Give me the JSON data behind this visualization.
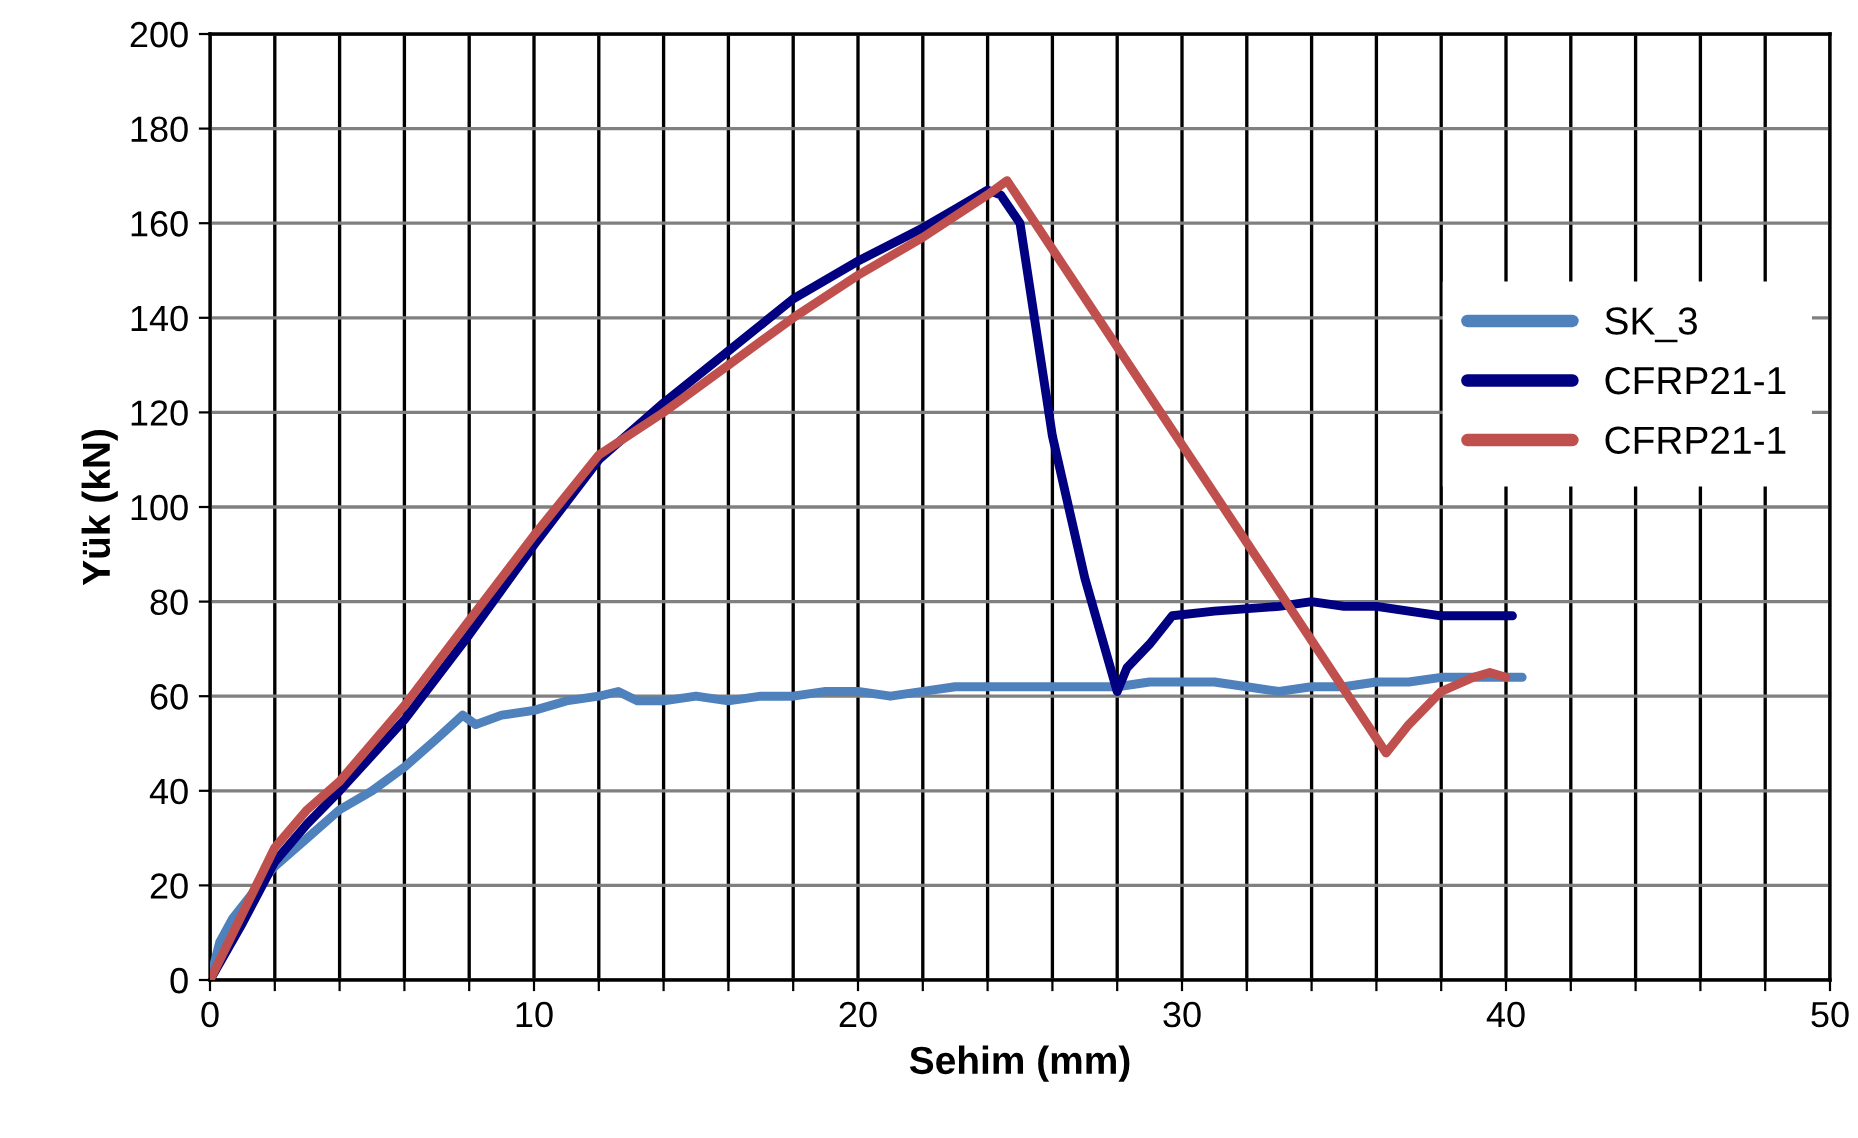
{
  "chart_data": {
    "type": "line",
    "xlabel": "Sehim (mm)",
    "ylabel": "Yük (kN)",
    "xlim": [
      0,
      50
    ],
    "ylim": [
      0,
      200
    ],
    "xticks": [
      0,
      {
        "value": 2,
        "label": null
      },
      {
        "value": 4,
        "label": null
      },
      {
        "value": 6,
        "label": null
      },
      {
        "value": 8,
        "label": null
      },
      10,
      {
        "value": 12,
        "label": null
      },
      {
        "value": 14,
        "label": null
      },
      {
        "value": 16,
        "label": null
      },
      {
        "value": 18,
        "label": null
      },
      20,
      {
        "value": 22,
        "label": null
      },
      {
        "value": 24,
        "label": null
      },
      {
        "value": 26,
        "label": null
      },
      {
        "value": 28,
        "label": null
      },
      30,
      {
        "value": 32,
        "label": null
      },
      {
        "value": 34,
        "label": null
      },
      {
        "value": 36,
        "label": null
      },
      {
        "value": 38,
        "label": null
      },
      40,
      {
        "value": 42,
        "label": null
      },
      {
        "value": 44,
        "label": null
      },
      {
        "value": 46,
        "label": null
      },
      {
        "value": 48,
        "label": null
      },
      50
    ],
    "yticks": [
      0,
      20,
      40,
      60,
      80,
      100,
      120,
      140,
      160,
      180,
      200
    ],
    "grid": true,
    "legend": "right",
    "marker": "none",
    "line_style": "solid",
    "series": [
      {
        "name": "SK_3",
        "color": "#4f81bd",
        "x": [
          0,
          0.3,
          0.7,
          1.5,
          2,
          3,
          4,
          5,
          6,
          7,
          7.8,
          8.2,
          9,
          10,
          11,
          12,
          12.6,
          13.2,
          14,
          15,
          16,
          17,
          18,
          19,
          20,
          21,
          22,
          23,
          24,
          25,
          26,
          27,
          28,
          29,
          30,
          31,
          32,
          33,
          34,
          35,
          36,
          37,
          38,
          39,
          40,
          40.5
        ],
        "values": [
          0,
          8,
          13,
          20,
          24,
          30,
          36,
          40,
          45,
          51,
          56,
          54,
          56,
          57,
          59,
          60,
          61,
          59,
          59,
          60,
          59,
          60,
          60,
          61,
          61,
          60,
          61,
          62,
          62,
          62,
          62,
          62,
          62,
          63,
          63,
          63,
          62,
          61,
          62,
          62,
          63,
          63,
          64,
          64,
          64,
          64
        ]
      },
      {
        "name": "CFRP21-1",
        "color": "#000080",
        "x": [
          0,
          1,
          2,
          3,
          4,
          6,
          8,
          10,
          12,
          14,
          16,
          18,
          20,
          22,
          23,
          24,
          24.4,
          25,
          26,
          27,
          28,
          28.3,
          29,
          29.7,
          31,
          33,
          34,
          35,
          36,
          37,
          38,
          39,
          40.2
        ],
        "values": [
          0,
          12,
          25,
          33,
          40,
          55,
          73,
          92,
          110,
          122,
          133,
          144,
          152,
          159,
          163,
          167,
          166,
          160,
          115,
          85,
          61,
          66,
          71,
          77,
          78,
          79,
          80,
          79,
          79,
          78,
          77,
          77,
          77
        ]
      },
      {
        "name": "CFRP21-1",
        "color": "#c0504d",
        "x": [
          0,
          1,
          2,
          3,
          4,
          6,
          8,
          10,
          12,
          14,
          16,
          18,
          20,
          22,
          24,
          24.6,
          36.3,
          37,
          38,
          39,
          39.5,
          40
        ],
        "values": [
          0,
          14,
          28,
          36,
          42,
          58,
          76,
          94,
          111,
          120,
          130,
          140,
          149,
          157,
          166,
          169,
          48,
          54,
          61,
          64,
          65,
          64
        ]
      }
    ]
  }
}
